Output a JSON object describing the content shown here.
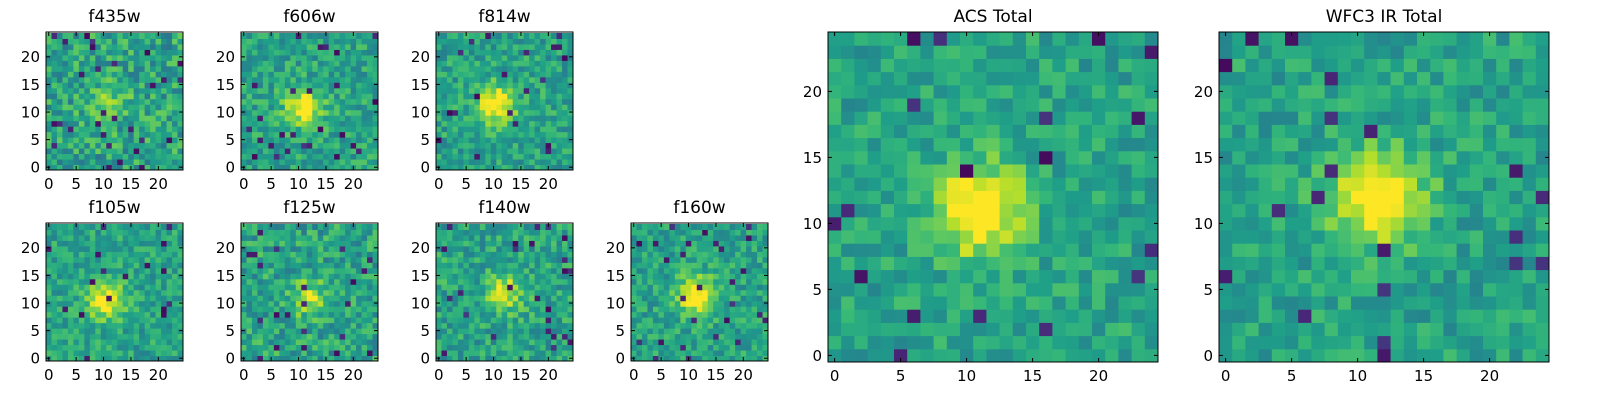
{
  "chart_data": [
    {
      "type": "heatmap",
      "title": "f435w",
      "x_ticks": [
        0,
        5,
        10,
        15,
        20
      ],
      "y_ticks": [
        0,
        5,
        10,
        15,
        20
      ],
      "xlim": [
        -0.5,
        24.5
      ],
      "ylim": [
        -0.5,
        24.5
      ],
      "grid_size": [
        25,
        25
      ],
      "colormap": "viridis",
      "source_center": [
        11,
        11.5
      ],
      "source_intensity": 0.22,
      "noise_level": 0.38,
      "dark_pixel_fraction": 0.04,
      "seed": 11
    },
    {
      "type": "heatmap",
      "title": "f606w",
      "x_ticks": [
        0,
        5,
        10,
        15,
        20
      ],
      "y_ticks": [
        0,
        5,
        10,
        15,
        20
      ],
      "xlim": [
        -0.5,
        24.5
      ],
      "ylim": [
        -0.5,
        24.5
      ],
      "grid_size": [
        25,
        25
      ],
      "colormap": "viridis",
      "source_center": [
        11,
        11
      ],
      "source_intensity": 0.45,
      "noise_level": 0.3,
      "dark_pixel_fraction": 0.025,
      "seed": 22
    },
    {
      "type": "heatmap",
      "title": "f814w",
      "x_ticks": [
        0,
        5,
        10,
        15,
        20
      ],
      "y_ticks": [
        0,
        5,
        10,
        15,
        20
      ],
      "xlim": [
        -0.5,
        24.5
      ],
      "ylim": [
        -0.5,
        24.5
      ],
      "grid_size": [
        25,
        25
      ],
      "colormap": "viridis",
      "source_center": [
        10.5,
        11.5
      ],
      "source_intensity": 0.5,
      "noise_level": 0.3,
      "dark_pixel_fraction": 0.03,
      "seed": 33
    },
    {
      "type": "heatmap",
      "title": "f105w",
      "x_ticks": [
        0,
        5,
        10,
        15,
        20
      ],
      "y_ticks": [
        0,
        5,
        10,
        15,
        20
      ],
      "xlim": [
        -0.5,
        24.5
      ],
      "ylim": [
        -0.5,
        24.5
      ],
      "grid_size": [
        25,
        25
      ],
      "colormap": "viridis",
      "source_center": [
        10.5,
        10.5
      ],
      "source_intensity": 0.45,
      "noise_level": 0.28,
      "dark_pixel_fraction": 0.025,
      "seed": 44
    },
    {
      "type": "heatmap",
      "title": "f125w",
      "x_ticks": [
        0,
        5,
        10,
        15,
        20
      ],
      "y_ticks": [
        0,
        5,
        10,
        15,
        20
      ],
      "xlim": [
        -0.5,
        24.5
      ],
      "ylim": [
        -0.5,
        24.5
      ],
      "grid_size": [
        25,
        25
      ],
      "colormap": "viridis",
      "source_center": [
        12,
        11
      ],
      "source_intensity": 0.3,
      "noise_level": 0.35,
      "dark_pixel_fraction": 0.035,
      "seed": 55
    },
    {
      "type": "heatmap",
      "title": "f140w",
      "x_ticks": [
        0,
        5,
        10,
        15,
        20
      ],
      "y_ticks": [
        0,
        5,
        10,
        15,
        20
      ],
      "xlim": [
        -0.5,
        24.5
      ],
      "ylim": [
        -0.5,
        24.5
      ],
      "grid_size": [
        25,
        25
      ],
      "colormap": "viridis",
      "source_center": [
        12,
        12
      ],
      "source_intensity": 0.35,
      "noise_level": 0.32,
      "dark_pixel_fraction": 0.04,
      "seed": 66
    },
    {
      "type": "heatmap",
      "title": "f160w",
      "x_ticks": [
        0,
        5,
        10,
        15,
        20
      ],
      "y_ticks": [
        0,
        5,
        10,
        15,
        20
      ],
      "xlim": [
        -0.5,
        24.5
      ],
      "ylim": [
        -0.5,
        24.5
      ],
      "grid_size": [
        25,
        25
      ],
      "colormap": "viridis",
      "source_center": [
        11.5,
        11.5
      ],
      "source_intensity": 0.5,
      "noise_level": 0.28,
      "dark_pixel_fraction": 0.05,
      "seed": 77
    },
    {
      "type": "heatmap",
      "title": "ACS Total",
      "x_ticks": [
        0,
        5,
        10,
        15,
        20
      ],
      "y_ticks": [
        0,
        5,
        10,
        15,
        20
      ],
      "xlim": [
        -0.5,
        24.5
      ],
      "ylim": [
        -0.5,
        24.5
      ],
      "grid_size": [
        25,
        25
      ],
      "colormap": "viridis",
      "source_center": [
        11,
        11
      ],
      "source_intensity": 0.55,
      "noise_level": 0.25,
      "dark_pixel_fraction": 0.03,
      "seed": 88
    },
    {
      "type": "heatmap",
      "title": "WFC3 IR Total",
      "x_ticks": [
        0,
        5,
        10,
        15,
        20
      ],
      "y_ticks": [
        0,
        5,
        10,
        15,
        20
      ],
      "xlim": [
        -0.5,
        24.5
      ],
      "ylim": [
        -0.5,
        24.5
      ],
      "grid_size": [
        25,
        25
      ],
      "colormap": "viridis",
      "source_center": [
        11.5,
        12
      ],
      "source_intensity": 0.55,
      "noise_level": 0.25,
      "dark_pixel_fraction": 0.03,
      "seed": 99
    }
  ]
}
